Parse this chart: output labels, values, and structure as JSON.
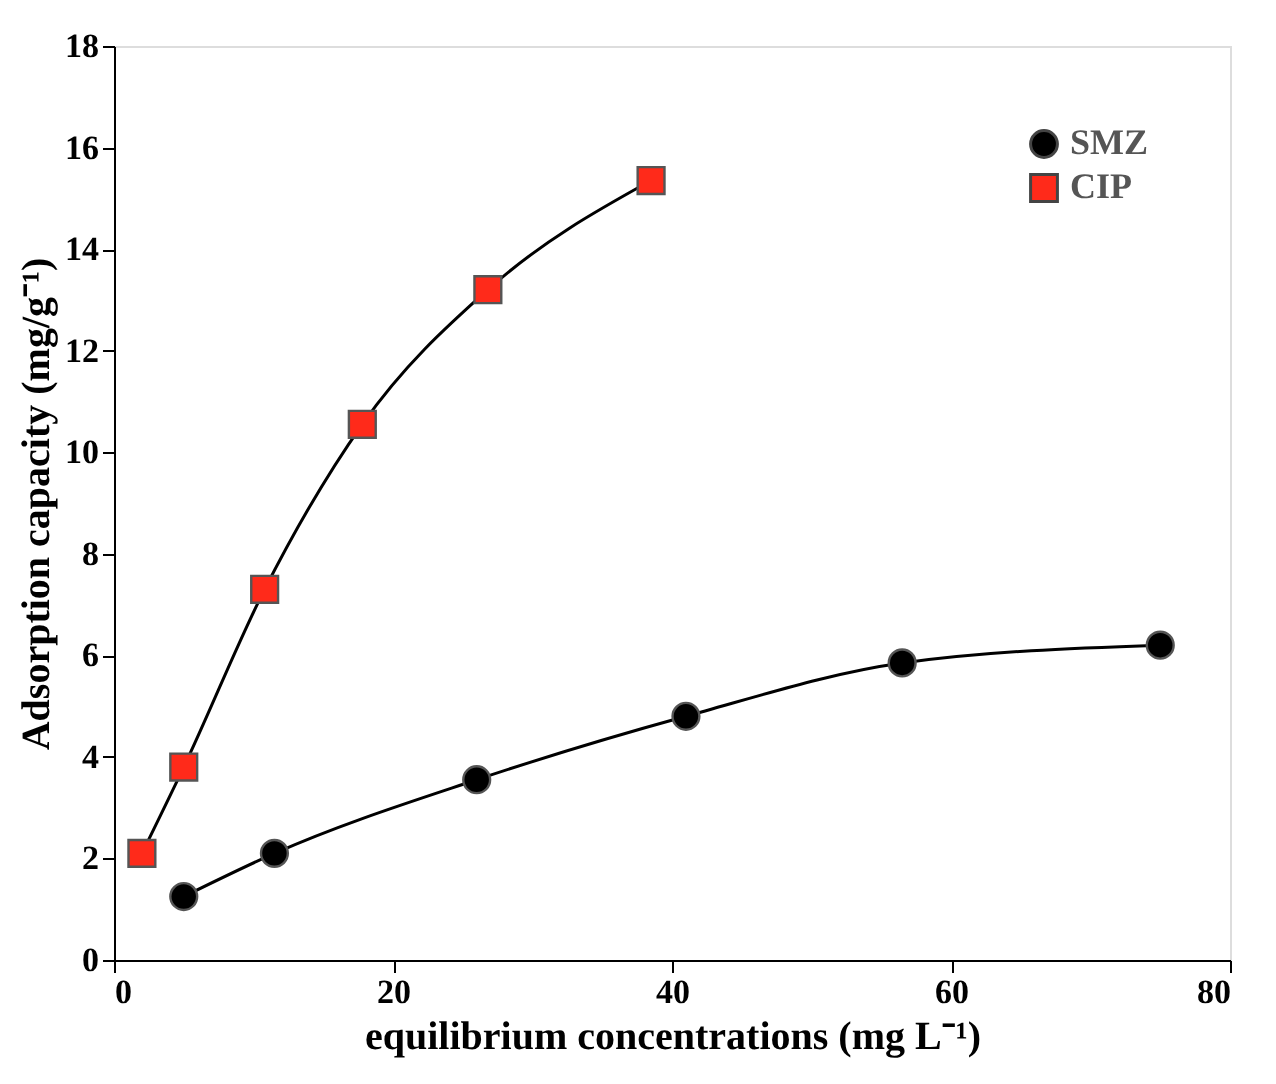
{
  "chart_data": {
    "type": "line",
    "xlabel": "equilibrium concentrations (mg L⁻¹)",
    "ylabel": "Adsorption capacity (mg/g⁻¹)",
    "xlim": [
      0,
      80
    ],
    "xticks": [
      0,
      20,
      40,
      60,
      80
    ],
    "ylim": [
      0,
      18
    ],
    "yticks": [
      0,
      2,
      4,
      6,
      8,
      10,
      12,
      14,
      16,
      18
    ],
    "grid": false,
    "legend": "top right",
    "line_style": "solid",
    "series": [
      {
        "name": "SMZ",
        "color": "#000000",
        "marker": "circle",
        "x": [
          5,
          11.5,
          26,
          41,
          56.5,
          75
        ],
        "values": [
          1.25,
          2.1,
          3.55,
          4.8,
          5.85,
          6.2
        ]
      },
      {
        "name": "CIP",
        "color": "#ff2a1a",
        "marker": "square",
        "x": [
          2,
          5,
          10.8,
          17.8,
          26.8,
          38.5
        ],
        "values": [
          2.1,
          3.8,
          7.3,
          10.55,
          13.2,
          15.35
        ]
      }
    ]
  }
}
